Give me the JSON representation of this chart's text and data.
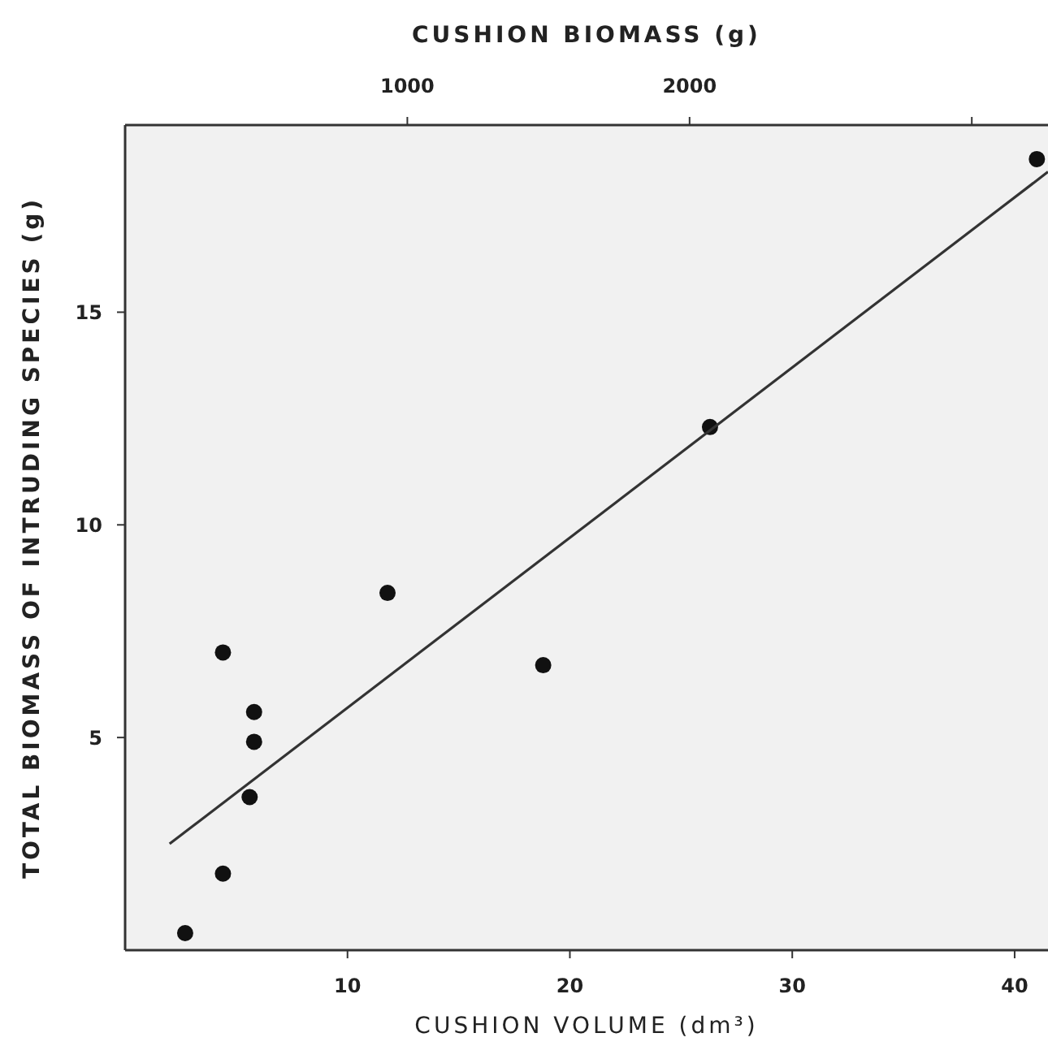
{
  "chart_data": {
    "type": "scatter",
    "xlabel": "CUSHION VOLUME (dm³)",
    "x2label": "CUSHION BIOMASS (g)",
    "ylabel": "TOTAL BIOMASS OF INTRUDING SPECIES (g)",
    "xlim": [
      0,
      41.5
    ],
    "xticks": [
      10,
      20,
      30,
      40
    ],
    "x2lim": [
      0,
      3270
    ],
    "x2ticks": [
      1000,
      2000,
      {
        "value": 3000,
        "label": null
      }
    ],
    "ylim": [
      0,
      19.4
    ],
    "yticks": [
      5,
      10,
      15
    ],
    "grid": false,
    "series": [
      {
        "marker": "circle",
        "color": "#111111",
        "x": [
          41.0,
          26.3,
          11.8,
          18.8,
          4.4,
          5.8,
          5.8,
          5.6,
          4.4,
          2.7
        ],
        "values": [
          18.6,
          12.3,
          8.4,
          6.7,
          7.0,
          5.6,
          4.9,
          3.6,
          1.8,
          0.4
        ]
      },
      {
        "type": "line",
        "color": "#333333",
        "x": [
          2.0,
          41.5
        ],
        "values": [
          2.5,
          18.3
        ]
      }
    ]
  }
}
